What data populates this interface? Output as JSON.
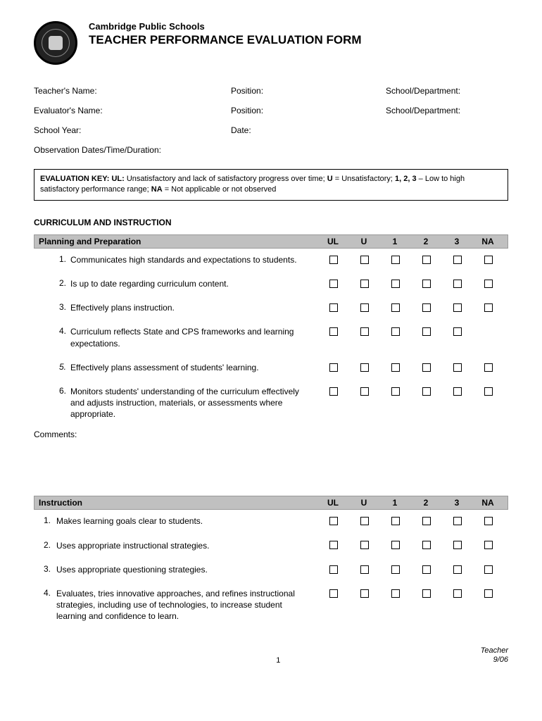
{
  "header": {
    "org": "Cambridge Public Schools",
    "title": "TEACHER PERFORMANCE EVALUATION FORM"
  },
  "info": {
    "teacher_name_label": "Teacher's Name:",
    "position_label_1": "Position:",
    "school_dept_label_1": "School/Department:",
    "evaluator_name_label": "Evaluator's Name:",
    "position_label_2": "Position:",
    "school_dept_label_2": "School/Department:",
    "school_year_label": "School Year:",
    "date_label": "Date:",
    "observation_label": "Observation Dates/Time/Duration:"
  },
  "key": {
    "prefix": "EVALUATION KEY:  UL:",
    "ul_text": " Unsatisfactory and lack of satisfactory progress over time; ",
    "u_bold": "U",
    "u_text": " = Unsatisfactory; ",
    "nums_bold": "1, 2, 3",
    "nums_text": " – Low to high satisfactory performance range; ",
    "na_bold": "NA",
    "na_text": " = Not applicable or not observed"
  },
  "rating_headers": [
    "UL",
    "U",
    "1",
    "2",
    "3",
    "NA"
  ],
  "section1": {
    "title": "CURRICULUM AND INSTRUCTION",
    "subtitle": "Planning and Preparation",
    "items": [
      {
        "num": "1.",
        "text": "Communicates high standards and expectations to students.",
        "cols": 6
      },
      {
        "num": "2.",
        "text": "Is up to date regarding curriculum content.",
        "cols": 6
      },
      {
        "num": "3.",
        "text": "Effectively plans instruction.",
        "cols": 6
      },
      {
        "num": "4.",
        "text": "Curriculum reflects State and CPS frameworks and learning expectations.",
        "cols": 6,
        "shifted": true
      },
      {
        "num": "5.",
        "text": "Effectively plans assessment of students' learning.",
        "cols": 6,
        "italic_num": true
      },
      {
        "num": "6.",
        "text": "Monitors students' understanding of the curriculum effectively and adjusts instruction, materials, or assessments where appropriate.",
        "cols": 6
      }
    ],
    "comments_label": "Comments:"
  },
  "section2": {
    "subtitle": "Instruction",
    "items": [
      {
        "num": "1.",
        "text": "Makes learning goals clear to students.",
        "cols": 6
      },
      {
        "num": "2.",
        "text": "Uses appropriate instructional strategies.",
        "cols": 6
      },
      {
        "num": "3.",
        "text": "Uses appropriate questioning strategies.",
        "cols": 6
      },
      {
        "num": "4.",
        "text": "Evaluates, tries innovative approaches, and refines instructional strategies, including use of technologies, to increase student learning and confidence to learn.",
        "cols": 6
      }
    ]
  },
  "footer": {
    "page": "1",
    "right1": "Teacher",
    "right2": "9/06"
  },
  "colors": {
    "header_bg": "#c0c0c0",
    "border": "#000000",
    "text": "#000000"
  }
}
